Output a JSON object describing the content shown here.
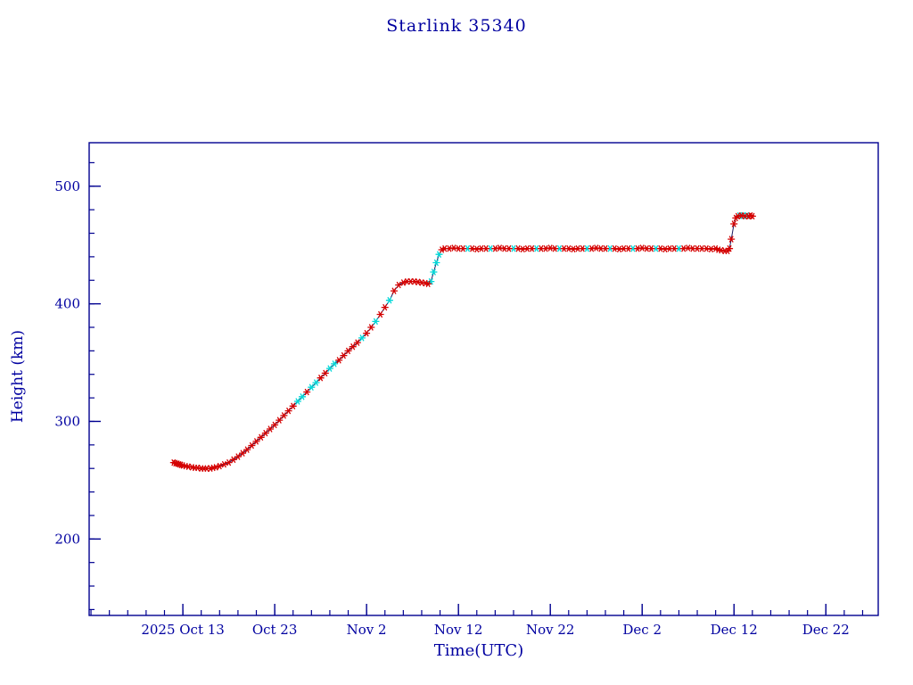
{
  "chart_data": {
    "type": "line",
    "title": "Starlink 35340",
    "xlabel": "Time(UTC)",
    "ylabel": "Height (km)",
    "grid": false,
    "legend": null,
    "xlim": [
      -10.2,
      75.7
    ],
    "ylim": [
      135,
      537
    ],
    "x_unit": "days relative to first major tick",
    "x_tick_positions": [
      0,
      10,
      20,
      30,
      40,
      50,
      60,
      70
    ],
    "x_tick_labels": [
      "2025 Oct 13",
      "Oct 23",
      "Nov  2",
      "Nov 12",
      "Nov 22",
      "Dec  2",
      "Dec 12",
      "Dec 22"
    ],
    "x_minor_step": 2,
    "y_tick_positions": [
      200,
      300,
      400,
      500
    ],
    "y_tick_labels": [
      "200",
      "300",
      "400",
      "500"
    ],
    "y_minor_step": 20,
    "colors": {
      "axis": "#000090",
      "text": "#0000a0",
      "line": "#1b1b60",
      "marker_red": "#d40000",
      "marker_cyan": "#00d8d8",
      "background": "#ffffff"
    },
    "marker": "asterisk",
    "points": [
      [
        -1.0,
        265,
        "r"
      ],
      [
        -0.8,
        264.5,
        "r"
      ],
      [
        -0.6,
        264,
        "r"
      ],
      [
        -0.4,
        263.5,
        "r"
      ],
      [
        -0.2,
        263,
        "r"
      ],
      [
        0,
        262.5,
        "r"
      ],
      [
        0.3,
        262,
        "r"
      ],
      [
        0.6,
        261.5,
        "r"
      ],
      [
        1,
        261,
        "r"
      ],
      [
        1.3,
        260.5,
        "r"
      ],
      [
        1.6,
        260.5,
        "r"
      ],
      [
        2,
        260,
        "r"
      ],
      [
        2.3,
        260,
        "r"
      ],
      [
        2.6,
        260,
        "r"
      ],
      [
        3,
        260,
        "r"
      ],
      [
        3.3,
        260.5,
        "r"
      ],
      [
        3.6,
        261,
        "r"
      ],
      [
        4,
        262,
        "r"
      ],
      [
        4.5,
        263.5,
        "r"
      ],
      [
        5,
        265,
        "r"
      ],
      [
        5.5,
        267.5,
        "r"
      ],
      [
        6,
        270,
        "r"
      ],
      [
        6.5,
        273,
        "r"
      ],
      [
        7,
        276,
        "r"
      ],
      [
        7.5,
        279.5,
        "r"
      ],
      [
        8,
        283,
        "r"
      ],
      [
        8.5,
        286.5,
        "r"
      ],
      [
        9,
        290,
        "r"
      ],
      [
        9.5,
        293.5,
        "r"
      ],
      [
        10,
        297,
        "r"
      ],
      [
        10.5,
        301,
        "r"
      ],
      [
        11,
        305,
        "r"
      ],
      [
        11.5,
        309,
        "r"
      ],
      [
        12,
        313,
        "r"
      ],
      [
        12.5,
        317,
        "c"
      ],
      [
        13,
        321,
        "c"
      ],
      [
        13.5,
        325,
        "r"
      ],
      [
        14,
        329,
        "c"
      ],
      [
        14.5,
        333,
        "c"
      ],
      [
        15,
        337,
        "r"
      ],
      [
        15.5,
        341,
        "r"
      ],
      [
        16,
        345,
        "c"
      ],
      [
        16.5,
        349,
        "c"
      ],
      [
        17,
        352,
        "r"
      ],
      [
        17.5,
        356,
        "r"
      ],
      [
        18,
        360,
        "r"
      ],
      [
        18.5,
        363.5,
        "r"
      ],
      [
        19,
        367,
        "r"
      ],
      [
        19.5,
        371,
        "c"
      ],
      [
        20,
        375,
        "r"
      ],
      [
        20.5,
        380,
        "r"
      ],
      [
        21,
        385,
        "c"
      ],
      [
        21.5,
        391,
        "r"
      ],
      [
        22,
        397,
        "r"
      ],
      [
        22.5,
        403,
        "c"
      ],
      [
        23,
        411,
        "r"
      ],
      [
        23.5,
        416,
        "r"
      ],
      [
        24,
        418,
        "r"
      ],
      [
        24.4,
        419,
        "r"
      ],
      [
        24.8,
        419,
        "r"
      ],
      [
        25.2,
        419,
        "r"
      ],
      [
        25.6,
        418.5,
        "r"
      ],
      [
        26,
        418,
        "r"
      ],
      [
        26.4,
        417.5,
        "r"
      ],
      [
        26.7,
        417,
        "r"
      ],
      [
        27,
        419,
        "c"
      ],
      [
        27.3,
        427,
        "c"
      ],
      [
        27.6,
        435,
        "c"
      ],
      [
        27.9,
        442,
        "c"
      ],
      [
        28.2,
        446,
        "r"
      ],
      [
        28.5,
        447,
        "r"
      ],
      [
        29,
        447,
        "r"
      ],
      [
        29.5,
        447.5,
        "r"
      ],
      [
        30,
        447,
        "r"
      ],
      [
        30.5,
        447,
        "r"
      ],
      [
        31,
        447,
        "c"
      ],
      [
        31.5,
        447,
        "r"
      ],
      [
        32,
        446.5,
        "r"
      ],
      [
        32.5,
        447,
        "r"
      ],
      [
        33,
        447,
        "r"
      ],
      [
        33.5,
        447,
        "c"
      ],
      [
        34,
        447,
        "r"
      ],
      [
        34.5,
        447.5,
        "r"
      ],
      [
        35,
        447,
        "r"
      ],
      [
        35.5,
        447,
        "r"
      ],
      [
        36,
        447,
        "c"
      ],
      [
        36.5,
        447,
        "r"
      ],
      [
        37,
        446.5,
        "r"
      ],
      [
        37.5,
        447,
        "r"
      ],
      [
        38,
        447,
        "r"
      ],
      [
        38.5,
        447,
        "c"
      ],
      [
        39,
        447,
        "r"
      ],
      [
        39.5,
        447,
        "r"
      ],
      [
        40,
        447.5,
        "r"
      ],
      [
        40.5,
        447,
        "r"
      ],
      [
        41,
        447,
        "c"
      ],
      [
        41.5,
        447,
        "r"
      ],
      [
        42,
        447,
        "r"
      ],
      [
        42.5,
        446.5,
        "r"
      ],
      [
        43,
        447,
        "r"
      ],
      [
        43.5,
        447,
        "r"
      ],
      [
        44,
        447,
        "c"
      ],
      [
        44.5,
        447,
        "r"
      ],
      [
        45,
        447.5,
        "r"
      ],
      [
        45.5,
        447,
        "r"
      ],
      [
        46,
        447,
        "r"
      ],
      [
        46.5,
        447,
        "c"
      ],
      [
        47,
        447,
        "r"
      ],
      [
        47.5,
        446.5,
        "r"
      ],
      [
        48,
        447,
        "r"
      ],
      [
        48.5,
        447,
        "r"
      ],
      [
        49,
        447,
        "c"
      ],
      [
        49.5,
        447,
        "r"
      ],
      [
        50,
        447.5,
        "r"
      ],
      [
        50.5,
        447,
        "r"
      ],
      [
        51,
        447,
        "r"
      ],
      [
        51.5,
        447,
        "c"
      ],
      [
        52,
        447,
        "r"
      ],
      [
        52.5,
        446.5,
        "r"
      ],
      [
        53,
        447,
        "r"
      ],
      [
        53.5,
        447,
        "r"
      ],
      [
        54,
        447,
        "c"
      ],
      [
        54.5,
        447,
        "r"
      ],
      [
        55,
        447.5,
        "r"
      ],
      [
        55.5,
        447,
        "r"
      ],
      [
        56,
        447,
        "r"
      ],
      [
        56.5,
        447,
        "r"
      ],
      [
        57,
        447,
        "r"
      ],
      [
        57.5,
        446.5,
        "r"
      ],
      [
        58,
        447,
        "r"
      ],
      [
        58.3,
        446,
        "r"
      ],
      [
        58.6,
        445.5,
        "r"
      ],
      [
        59,
        445,
        "r"
      ],
      [
        59.3,
        445,
        "r"
      ],
      [
        59.5,
        447,
        "r"
      ],
      [
        59.7,
        455,
        "r"
      ],
      [
        60,
        468,
        "r"
      ],
      [
        60.2,
        473,
        "r"
      ],
      [
        60.4,
        474.5,
        "r"
      ],
      [
        60.6,
        475,
        "c"
      ],
      [
        60.8,
        475,
        "r"
      ],
      [
        61,
        475,
        "c"
      ],
      [
        61.2,
        474.5,
        "r"
      ],
      [
        61.4,
        475,
        "c"
      ],
      [
        61.6,
        474.5,
        "r"
      ],
      [
        61.8,
        475,
        "r"
      ],
      [
        62,
        474.5,
        "r"
      ]
    ]
  }
}
